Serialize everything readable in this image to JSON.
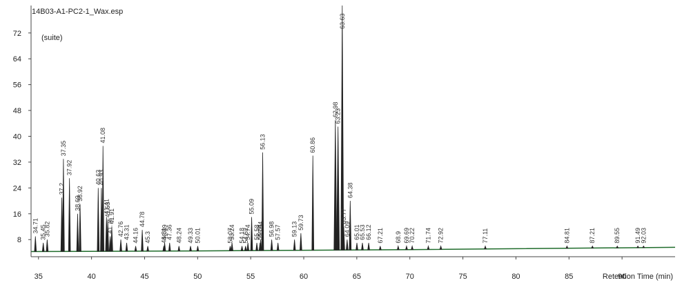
{
  "chart_data": {
    "type": "chromatogram",
    "title": "14B03-A1-PC2-1_Wax.esp",
    "subtitle": "(suite)",
    "x_label": "Retention Time (min)",
    "xlim": [
      34.3,
      95
    ],
    "ylim": [
      2.7,
      80.5
    ],
    "xticks": [
      35,
      40,
      45,
      50,
      55,
      60,
      65,
      70,
      75,
      80,
      85,
      90
    ],
    "yticks": [
      8,
      16,
      24,
      32,
      40,
      48,
      56,
      64,
      72
    ],
    "baseline": {
      "color": "#1e6b2a",
      "x": [
        34.3,
        50,
        70,
        95
      ],
      "values": [
        4.3,
        4.5,
        4.9,
        5.6
      ]
    },
    "series": [
      {
        "name": "peaks",
        "color": "#222222",
        "x": [
          34.71,
          35.45,
          35.82,
          37.2,
          37.35,
          37.92,
          38.69,
          38.92,
          40.63,
          40.93,
          41.08,
          41.41,
          41.53,
          41.76,
          41.91,
          42.76,
          43.31,
          44.16,
          44.78,
          45.3,
          46.81,
          46.89,
          47.36,
          48.24,
          49.33,
          50.01,
          53.07,
          53.24,
          54.18,
          54.52,
          54.74,
          55.09,
          55.58,
          55.88,
          55.94,
          56.13,
          56.98,
          57.57,
          59.13,
          59.73,
          60.86,
          62.98,
          63.23,
          63.63,
          63.77,
          64.09,
          64.38,
          65.01,
          65.53,
          66.12,
          67.21,
          68.9,
          69.69,
          70.22,
          71.74,
          72.92,
          77.11,
          84.81,
          87.21,
          89.55,
          91.49,
          92.03
        ],
        "values": [
          9,
          7,
          8,
          21,
          33,
          27,
          16,
          19,
          24,
          24,
          37,
          15,
          14,
          9,
          12,
          8,
          7,
          6,
          11,
          6,
          6,
          7,
          7,
          6,
          6,
          6,
          6,
          7,
          6,
          6,
          7,
          15,
          7,
          7,
          8,
          35,
          8,
          7,
          8,
          10,
          34,
          45,
          43,
          80.5,
          12,
          8,
          20,
          7,
          7,
          7,
          6,
          6,
          6,
          6,
          6,
          6,
          6,
          6,
          6,
          6,
          6,
          6
        ]
      }
    ]
  }
}
